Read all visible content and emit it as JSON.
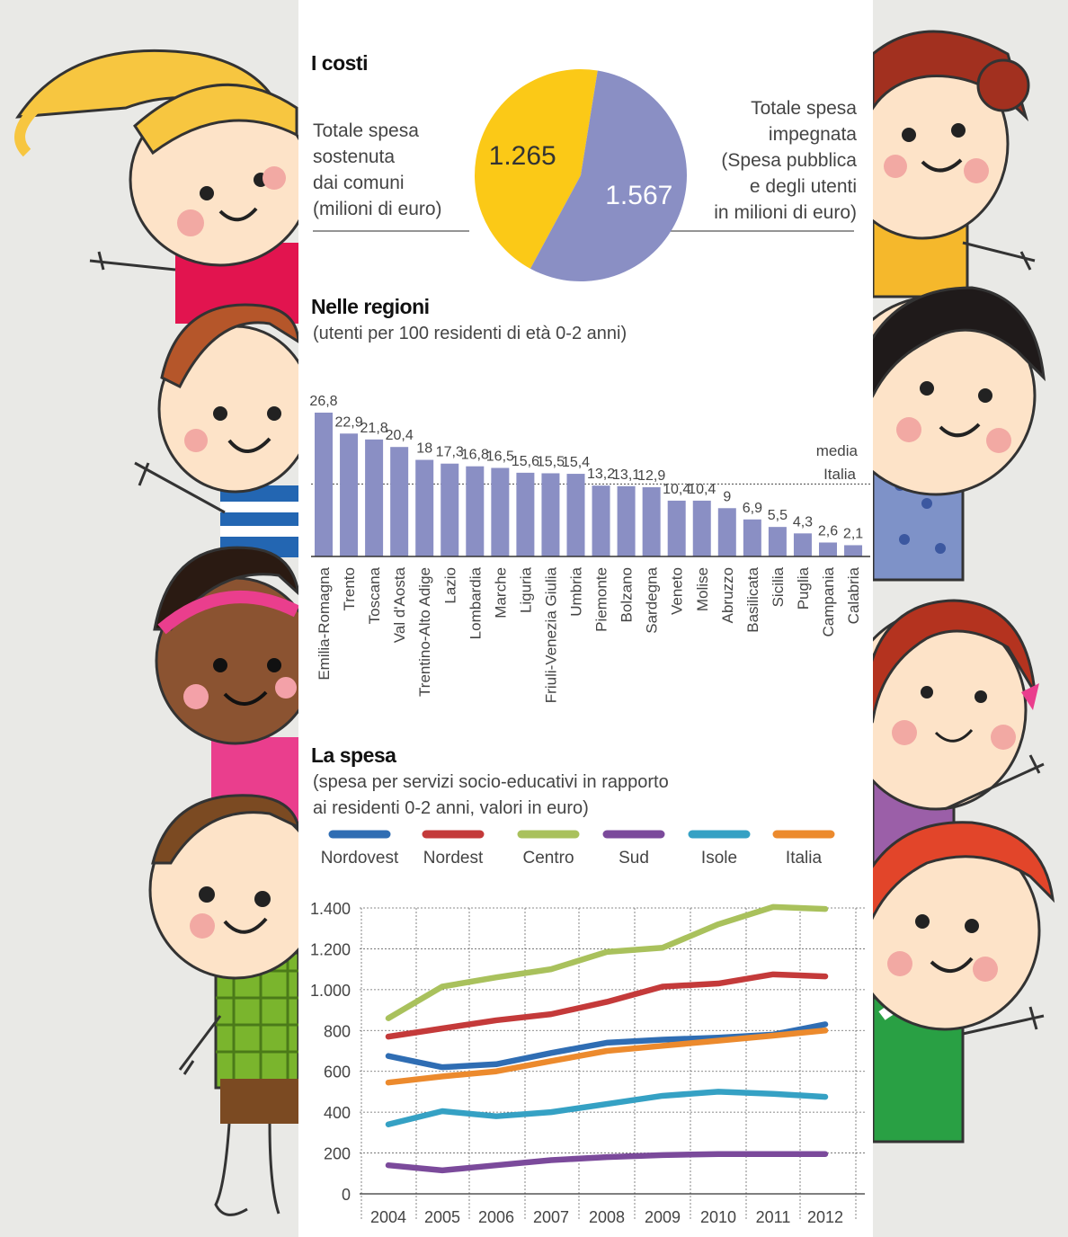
{
  "costs": {
    "title": "I costi",
    "left_text": [
      "Totale spesa",
      "sostenuta",
      "dai comuni",
      "(milioni di euro)"
    ],
    "right_text": [
      "Totale spesa",
      "impegnata",
      "(Spesa pubblica",
      "e degli utenti",
      "in milioni di euro)"
    ]
  },
  "regions": {
    "title": "Nelle regioni",
    "subtitle": "(utenti per 100 residenti di età 0-2 anni)",
    "avg_label": [
      "media",
      "Italia"
    ]
  },
  "spending": {
    "title": "La spesa",
    "subtitle": [
      "(spesa per servizi socio-educativi in rapporto",
      "ai residenti 0-2 anni, valori in euro)"
    ]
  },
  "chart_data": [
    {
      "type": "pie",
      "values": [
        1265,
        1567
      ],
      "labels": [
        "1.265",
        "1.567"
      ],
      "colors": [
        "#fbc917",
        "#8a8fc4"
      ]
    },
    {
      "type": "bar",
      "categories": [
        "Emilia-Romagna",
        "Trento",
        "Toscana",
        "Val d'Aosta",
        "Trentino-Alto Adige",
        "Lazio",
        "Lombardia",
        "Marche",
        "Liguria",
        "Friuli-Venezia Giulia",
        "Umbria",
        "Piemonte",
        "Bolzano",
        "Sardegna",
        "Veneto",
        "Molise",
        "Abruzzo",
        "Basilicata",
        "Sicilia",
        "Puglia",
        "Campania",
        "Calabria"
      ],
      "values": [
        26.8,
        22.9,
        21.8,
        20.4,
        18,
        17.3,
        16.8,
        16.5,
        15.6,
        15.5,
        15.4,
        13.2,
        13.1,
        12.9,
        10.4,
        10.4,
        9,
        6.9,
        5.5,
        4.3,
        2.6,
        2.1
      ],
      "value_labels": [
        "26,8",
        "22,9",
        "21,8",
        "20,4",
        "18",
        "17,3",
        "16,8",
        "16,5",
        "15,6",
        "15,5",
        "15,4",
        "13,2",
        "13,1",
        "12,9",
        "10,4",
        "10,4",
        "9",
        "6,9",
        "5,5",
        "4,3",
        "2,6",
        "2,1"
      ],
      "reference_line": 13.5,
      "color": "#8a8fc4"
    },
    {
      "type": "line",
      "x": [
        "2004",
        "2005",
        "2006",
        "2007",
        "2008",
        "2009",
        "2010",
        "2011",
        "2012"
      ],
      "ylim": [
        0,
        1400
      ],
      "yticks": [
        0,
        200,
        400,
        600,
        800,
        1000,
        1200,
        1400
      ],
      "ytick_labels": [
        "0",
        "200",
        "400",
        "600",
        "800",
        "1.000",
        "1.200",
        "1.400"
      ],
      "legend_position": "top",
      "series": [
        {
          "name": "Nordovest",
          "color": "#2f6db3",
          "values": [
            675,
            620,
            635,
            690,
            740,
            755,
            765,
            780,
            830
          ]
        },
        {
          "name": "Nordest",
          "color": "#c43a3a",
          "values": [
            770,
            810,
            850,
            880,
            940,
            1015,
            1030,
            1075,
            1065
          ]
        },
        {
          "name": "Centro",
          "color": "#a9c15c",
          "values": [
            860,
            1015,
            1060,
            1100,
            1185,
            1205,
            1320,
            1405,
            1395
          ]
        },
        {
          "name": "Sud",
          "color": "#7b4a9b",
          "values": [
            140,
            115,
            140,
            165,
            180,
            190,
            195,
            195,
            195
          ]
        },
        {
          "name": "Isole",
          "color": "#35a1c4",
          "values": [
            340,
            405,
            380,
            400,
            440,
            480,
            500,
            490,
            475
          ]
        },
        {
          "name": "Italia",
          "color": "#ec8a2d",
          "values": [
            545,
            575,
            600,
            650,
            700,
            725,
            750,
            775,
            800
          ]
        }
      ]
    }
  ]
}
